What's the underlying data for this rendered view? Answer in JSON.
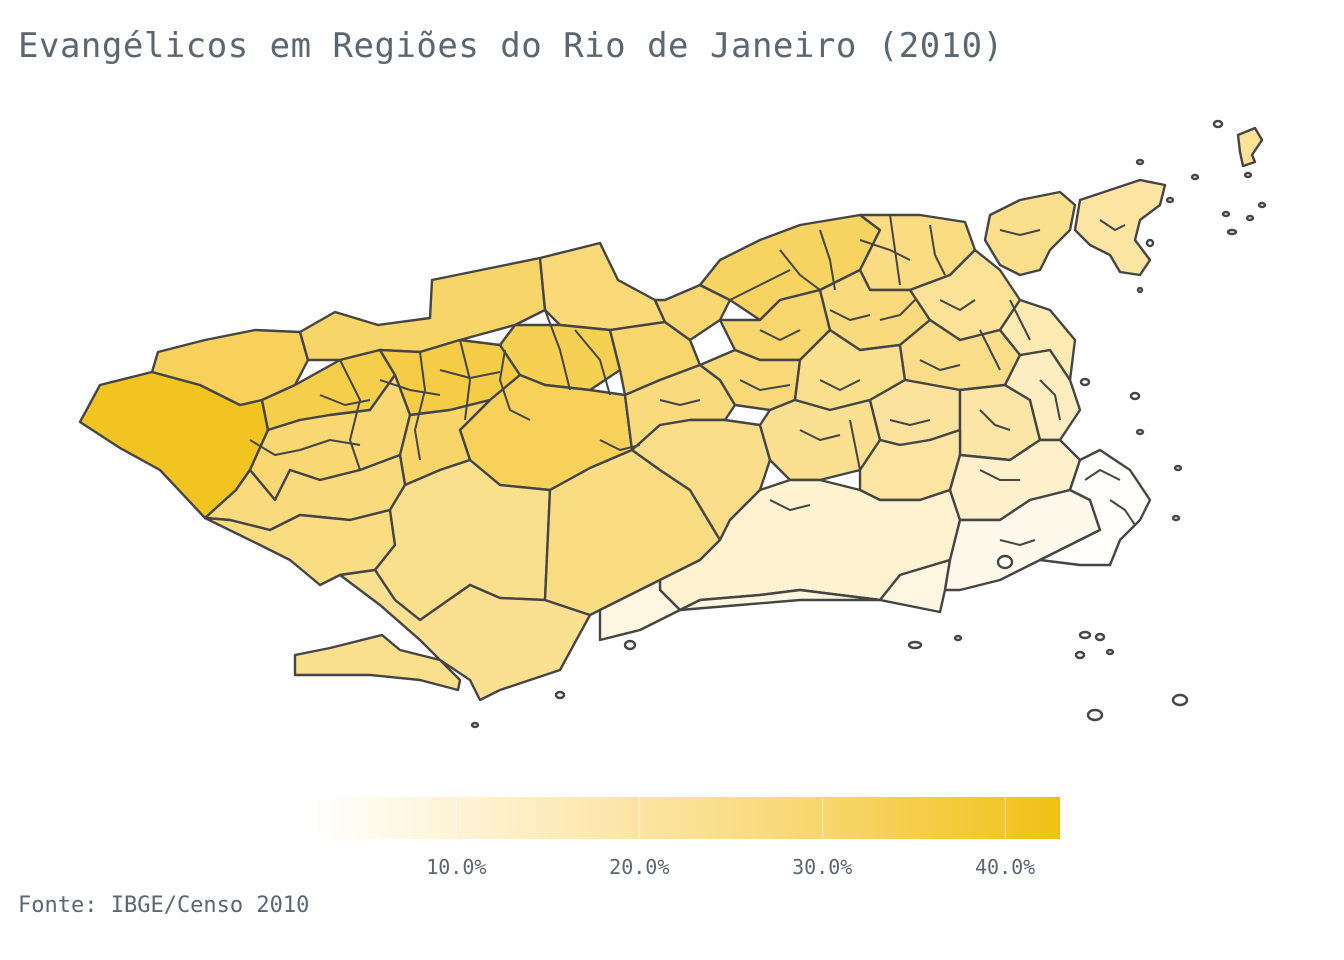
{
  "title": "Evangélicos em Regiões do Rio de Janeiro (2010)",
  "source": "Fonte: IBGE/Censo 2010",
  "chart_data": {
    "type": "choropleth",
    "colorscale": {
      "min_color": "#ffffff",
      "max_color": "#f0c114",
      "range": [
        2.0,
        43.0
      ],
      "ticks": [
        10,
        20,
        30,
        40
      ],
      "tick_labels": [
        "10.0%",
        "20.0%",
        "30.0%",
        "40.0%"
      ]
    },
    "regions": [
      {
        "zone": "far-west",
        "value": 41
      },
      {
        "zone": "west-north-1",
        "value": 33
      },
      {
        "zone": "west-north-2",
        "value": 31
      },
      {
        "zone": "west-north-3",
        "value": 28
      },
      {
        "zone": "west-center-1",
        "value": 35
      },
      {
        "zone": "west-center-2",
        "value": 36
      },
      {
        "zone": "west-center-3",
        "value": 34
      },
      {
        "zone": "west-center-4",
        "value": 33
      },
      {
        "zone": "west-center-5",
        "value": 30
      },
      {
        "zone": "west-south-1",
        "value": 29
      },
      {
        "zone": "west-south-2",
        "value": 31
      },
      {
        "zone": "west-south-3",
        "value": 27
      },
      {
        "zone": "west-coast-1",
        "value": 26
      },
      {
        "zone": "west-coast-2",
        "value": 24
      },
      {
        "zone": "west-coast-3",
        "value": 23
      },
      {
        "zone": "west-coast-4",
        "value": 24
      },
      {
        "zone": "center-hill",
        "value": 26
      },
      {
        "zone": "center-north-1",
        "value": 27
      },
      {
        "zone": "center-north-2",
        "value": 29
      },
      {
        "zone": "center-west",
        "value": 25
      },
      {
        "zone": "north-1",
        "value": 32
      },
      {
        "zone": "north-2",
        "value": 30
      },
      {
        "zone": "north-3",
        "value": 28
      },
      {
        "zone": "north-4",
        "value": 26
      },
      {
        "zone": "north-5",
        "value": 27
      },
      {
        "zone": "north-6",
        "value": 24
      },
      {
        "zone": "north-7",
        "value": 22
      },
      {
        "zone": "north-8",
        "value": 25
      },
      {
        "zone": "center-east-1",
        "value": 23
      },
      {
        "zone": "center-east-2",
        "value": 21
      },
      {
        "zone": "center-east-3",
        "value": 19
      },
      {
        "zone": "center-east-4",
        "value": 20
      },
      {
        "zone": "lagoon-south",
        "value": 11
      },
      {
        "zone": "beach-strip",
        "value": 8
      },
      {
        "zone": "east-1",
        "value": 14
      },
      {
        "zone": "east-2",
        "value": 17
      },
      {
        "zone": "east-3",
        "value": 12
      },
      {
        "zone": "south-zone",
        "value": 6
      },
      {
        "zone": "south-tip",
        "value": 3
      },
      {
        "zone": "governador-island",
        "value": 24
      },
      {
        "zone": "island-east",
        "value": 20
      },
      {
        "zone": "paqueta",
        "value": 22
      }
    ]
  }
}
